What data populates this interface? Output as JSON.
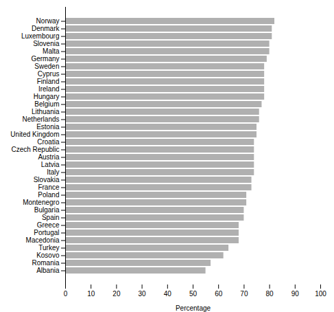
{
  "chart_data": {
    "type": "bar",
    "orientation": "horizontal",
    "categories": [
      "Norway",
      "Denmark",
      "Luxembourg",
      "Slovenia",
      "Malta",
      "Germany",
      "Sweden",
      "Cyprus",
      "Finland",
      "Ireland",
      "Hungary",
      "Belgium",
      "Lithuania",
      "Netherlands",
      "Estonia",
      "United Kingdom",
      "Croatia",
      "Czech Republic",
      "Austria",
      "Latvia",
      "Italy",
      "Slovakia",
      "France",
      "Poland",
      "Montenegro",
      "Bulgaria",
      "Spain",
      "Greece",
      "Portugal",
      "Macedonia",
      "Turkey",
      "Kosovo",
      "Romania",
      "Albania"
    ],
    "values": [
      82,
      81,
      81,
      80,
      80,
      79,
      78,
      78,
      78,
      78,
      78,
      77,
      76,
      76,
      75,
      75,
      74,
      74,
      74,
      74,
      74,
      73,
      73,
      71,
      71,
      70,
      70,
      68,
      68,
      68,
      64,
      62,
      57,
      55
    ],
    "color": "#b0b0b0",
    "xlabel": "Percentage",
    "xlim": [
      0,
      100
    ],
    "xticks": [
      0,
      10,
      20,
      30,
      40,
      50,
      60,
      70,
      80,
      90,
      100
    ],
    "grid": false
  }
}
